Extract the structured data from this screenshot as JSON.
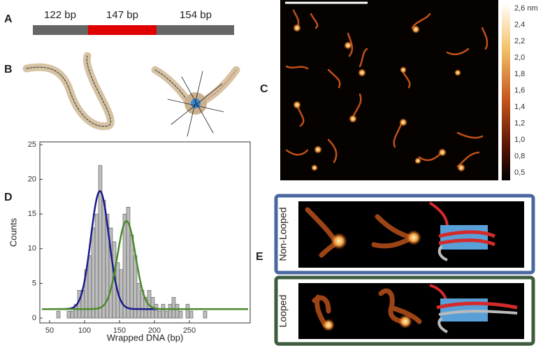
{
  "panel_letters": {
    "a": "A",
    "b": "B",
    "c": "C",
    "d": "D",
    "e": "E"
  },
  "construct": {
    "segments": [
      "122 bp",
      "147 bp",
      "154 bp"
    ]
  },
  "colorbar_labels": [
    "2,6 nm",
    "2,4",
    "2,2",
    "2,0",
    "1,8",
    "1,6",
    "1,4",
    "1,2",
    "1,0",
    "0,8",
    "0,5"
  ],
  "panel_e": {
    "rows": [
      "Non-Looped",
      "Looped"
    ]
  },
  "chart_data": {
    "type": "histogram",
    "xlabel": "Wrapped DNA (bp)",
    "ylabel": "Counts",
    "color": "#bdbdbd",
    "bins": [
      55,
      60,
      65,
      70,
      75,
      80,
      85,
      90,
      95,
      100,
      105,
      110,
      115,
      120,
      125,
      130,
      135,
      140,
      145,
      150,
      155,
      160,
      165,
      170,
      175,
      180,
      185,
      190,
      195,
      200,
      205,
      210,
      215,
      220,
      225,
      230,
      235,
      240,
      245,
      250,
      255,
      260,
      265,
      270,
      275
    ],
    "values": [
      0,
      1,
      0,
      0,
      1,
      1,
      2,
      4,
      4,
      7,
      9,
      13,
      15,
      22,
      17,
      15,
      13,
      11,
      8,
      7,
      15,
      16,
      12,
      9,
      5,
      4,
      3,
      4,
      3,
      2,
      1,
      2,
      1,
      2,
      3,
      2,
      1,
      0,
      2,
      1,
      0,
      0,
      0,
      1
    ],
    "fits": [
      {
        "color": "#1a1a8c",
        "mean": 122,
        "sigma": 13,
        "amplitude": 17,
        "baseline": 1.3
      },
      {
        "color": "#4b8a2a",
        "mean": 160,
        "sigma": 13,
        "amplitude": 12.7,
        "baseline": 1.3
      }
    ],
    "xlim": [
      36,
      337
    ],
    "ylim": [
      -0.7,
      25.4
    ],
    "xticks": [
      50,
      100,
      150,
      200,
      250
    ],
    "yticks": [
      0,
      5,
      10,
      15,
      20,
      25
    ]
  }
}
